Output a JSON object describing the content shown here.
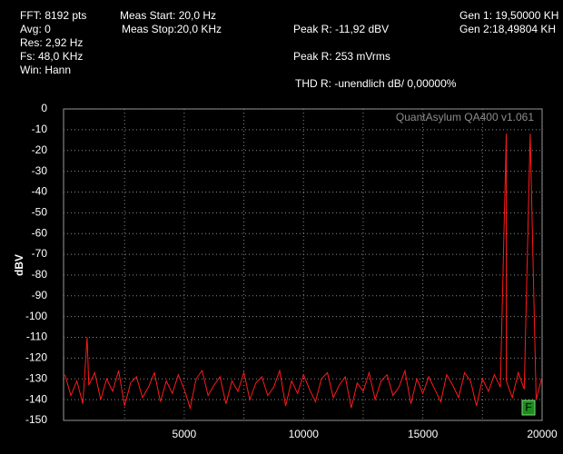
{
  "chart_data": {
    "type": "line",
    "info": [
      "FFT: 8192 pts",
      "Avg: 0",
      "Res: 2,92 Hz",
      "Fs: 48,0 KHz",
      "Win: Hann",
      "Meas Start: 20,0 Hz",
      "Meas Stop:20,0 KHz",
      "Peak R: -11,92 dBV",
      "Peak R: 253 mVrms",
      "THD R: -unendlich dB/ 0,00000%",
      "Gen 1: 19,50000 KH",
      "Gen 2:18,49804 KH"
    ],
    "watermark": "QuantAsylum QA400 v1.061",
    "marker_label": "F",
    "y_label": "dBV",
    "xlim": [
      0,
      20000
    ],
    "ylim": [
      -150,
      0
    ],
    "xticks": [
      5000,
      10000,
      15000,
      20000
    ],
    "x_minor_grid": [
      2500,
      7500,
      12500,
      17500
    ],
    "yticks": [
      0,
      -10,
      -20,
      -30,
      -40,
      -50,
      -60,
      -70,
      -80,
      -90,
      -100,
      -110,
      -120,
      -130,
      -140,
      -150
    ],
    "grid": true,
    "series": [
      {
        "name": "R",
        "color": "#ff1a1a",
        "x": [
          0,
          250,
          500,
          750,
          930,
          1000,
          1250,
          1500,
          1750,
          2000,
          2250,
          2500,
          2750,
          3000,
          3250,
          3500,
          3750,
          4000,
          4250,
          4500,
          4750,
          5000,
          5250,
          5500,
          5750,
          6000,
          6250,
          6500,
          6750,
          7000,
          7250,
          7500,
          7750,
          8000,
          8250,
          8500,
          8750,
          9000,
          9250,
          9500,
          9750,
          10000,
          10250,
          10500,
          10750,
          11000,
          11250,
          11500,
          11750,
          12000,
          12250,
          12500,
          12750,
          13000,
          13250,
          13500,
          13750,
          14000,
          14250,
          14500,
          14750,
          15000,
          15250,
          15500,
          15750,
          16000,
          16250,
          16500,
          16750,
          17000,
          17250,
          17500,
          17750,
          18000,
          18250,
          18498,
          18500,
          18750,
          19000,
          19250,
          19500,
          19750,
          20000
        ],
        "values": [
          -128,
          -138,
          -131,
          -142,
          -110,
          -133,
          -127,
          -140,
          -130,
          -136,
          -126,
          -143,
          -132,
          -129,
          -139,
          -134,
          -127,
          -141,
          -131,
          -137,
          -128,
          -135,
          -144,
          -130,
          -126,
          -138,
          -133,
          -129,
          -142,
          -131,
          -136,
          -127,
          -140,
          -132,
          -129,
          -138,
          -134,
          -126,
          -143,
          -131,
          -137,
          -128,
          -135,
          -141,
          -130,
          -127,
          -139,
          -133,
          -129,
          -144,
          -132,
          -136,
          -127,
          -140,
          -131,
          -128,
          -138,
          -134,
          -126,
          -142,
          -130,
          -137,
          -129,
          -135,
          -141,
          -128,
          -133,
          -139,
          -127,
          -131,
          -143,
          -130,
          -136,
          -128,
          -134,
          -11.92,
          -131,
          -139,
          -127,
          -135,
          -11.92,
          -140,
          -129
        ]
      }
    ]
  }
}
